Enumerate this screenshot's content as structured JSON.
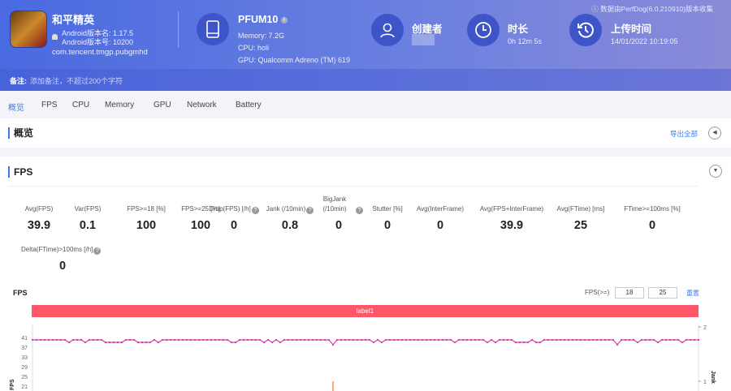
{
  "app": {
    "name": "和平精英",
    "version_name": "Android版本名: 1.17.5",
    "version_code": "Android版本号: 10200",
    "package": "com.tencent.tmgp.pubgmhd"
  },
  "device": {
    "name": "PFUM10",
    "memory": "Memory: 7.2G",
    "cpu": "CPU: holi",
    "gpu": "GPU: Qualcomm Adreno (TM) 619"
  },
  "creator": {
    "title": "创建者"
  },
  "duration": {
    "title": "时长",
    "value": "0h 12m 5s"
  },
  "upload": {
    "title": "上传时间",
    "value": "14/01/2022 10:19:05"
  },
  "source_note": "数据由PerfDog(6.0.210910)版本收集",
  "note": {
    "label": "备注:",
    "placeholder": "添加备注，不超过200个字符"
  },
  "tabs": [
    "概览",
    "FPS",
    "CPU",
    "Memory",
    "GPU",
    "Network",
    "Battery"
  ],
  "overview": {
    "title": "概览",
    "export_label": "导出全部"
  },
  "fps_section": {
    "title": "FPS"
  },
  "metrics": [
    {
      "label": "Avg(FPS)",
      "value": "39.9"
    },
    {
      "label": "Var(FPS)",
      "value": "0.1"
    },
    {
      "label": "FPS>=18 [%]",
      "value": "100"
    },
    {
      "label": "FPS>=25 [%]",
      "value": "100"
    },
    {
      "label": "Drop(FPS) [/h]",
      "value": "0",
      "help": true
    },
    {
      "label": "Jank (/10min)",
      "value": "0.8",
      "help": true
    },
    {
      "label": "BigJank (/10min)",
      "value": "0",
      "help": true
    },
    {
      "label": "Stutter [%]",
      "value": "0"
    },
    {
      "label": "Avg(InterFrame)",
      "value": "0"
    },
    {
      "label": "Avg(FPS+InterFrame)",
      "value": "39.9"
    },
    {
      "label": "Avg(FTime) [ms]",
      "value": "25"
    },
    {
      "label": "FTime>=100ms [%]",
      "value": "0"
    },
    {
      "label": "Delta(FTime)>100ms [/h]",
      "value": "0",
      "help": true
    }
  ],
  "chart_controls": {
    "title": "FPS",
    "threshold_label": "FPS(>=)",
    "threshold_1": "18",
    "threshold_2": "25",
    "reset_label": "重置",
    "label_bar": "label1"
  },
  "chart_data": {
    "type": "line",
    "ylabel": "FPS",
    "y2label": "Jank",
    "yticks": [
      41,
      37,
      33,
      29,
      25,
      21
    ],
    "y2ticks": [
      2,
      1
    ],
    "colors": {
      "fps": "#d63fae",
      "jank": "#ff8a50",
      "label": "#ff5668"
    },
    "series": [
      {
        "values": [
          40,
          40,
          40,
          40,
          40,
          40,
          40,
          40,
          40,
          39,
          40,
          40,
          40,
          39,
          40,
          40,
          40,
          40,
          39,
          39,
          39,
          39,
          39,
          40,
          40,
          40,
          39,
          39,
          39,
          39,
          40,
          39,
          40,
          40,
          40,
          40,
          40,
          40,
          40,
          40,
          40,
          40,
          40,
          40,
          40,
          40,
          40,
          40,
          40,
          39,
          39,
          40,
          40,
          40,
          40,
          40,
          40,
          39,
          40,
          39,
          40,
          39,
          40,
          40,
          40,
          40,
          40,
          40,
          40,
          40,
          40,
          40,
          40,
          40,
          38,
          40,
          40,
          40,
          40,
          40,
          40,
          40,
          40,
          40,
          39,
          40,
          39,
          40,
          40,
          40,
          40,
          40,
          40,
          40,
          40,
          40,
          40,
          40,
          40,
          40,
          40,
          40,
          40,
          40,
          39,
          40,
          40,
          40,
          40,
          40,
          40,
          40,
          39,
          40,
          39,
          40,
          40,
          40,
          40,
          39,
          39,
          39,
          39,
          40,
          39,
          39,
          40,
          40,
          40,
          40,
          40,
          40,
          40,
          40,
          40,
          40,
          40,
          40,
          40,
          40,
          40,
          40,
          40,
          40,
          38,
          40,
          40,
          40,
          40,
          39,
          40,
          40,
          40,
          40,
          39,
          40,
          40,
          40,
          40,
          40,
          39,
          40,
          40,
          40,
          40
        ]
      },
      {
        "name": "Jank",
        "jank_events": [
          {
            "index": 74,
            "value": 1
          }
        ]
      }
    ]
  }
}
